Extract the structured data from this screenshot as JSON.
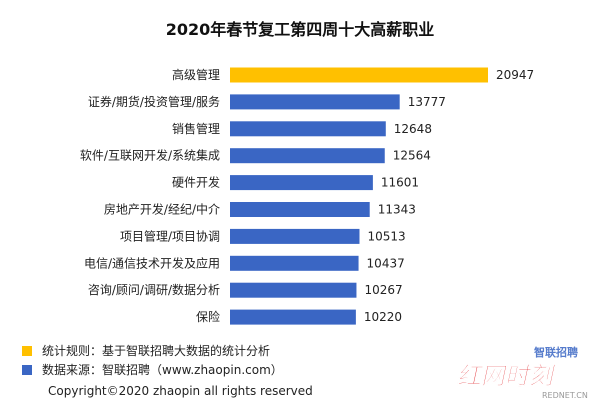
{
  "title": "2020年春节复工第四周十大高薪职业",
  "colors": {
    "highlight": "#FFC000",
    "bar": "#3A66C4",
    "text": "#222222",
    "logo_red": "#E0262B"
  },
  "chart_data": {
    "type": "bar",
    "orientation": "horizontal",
    "categories": [
      "高级管理",
      "证券/期货/投资管理/服务",
      "销售管理",
      "软件/互联网开发/系统集成",
      "硬件开发",
      "房地产开发/经纪/中介",
      "项目管理/项目协调",
      "电信/通信技术开发及应用",
      "咨询/顾问/调研/数据分析",
      "保险"
    ],
    "values": [
      20947,
      13777,
      12648,
      12564,
      11601,
      11343,
      10513,
      10437,
      10267,
      10220
    ],
    "value_labels": [
      "20947",
      "13777",
      "12648",
      "12564",
      "11601",
      "11343",
      "10513",
      "10437",
      "10267",
      "10220"
    ],
    "highlight_index": 0,
    "xlim": [
      0,
      21500
    ],
    "grid": false,
    "legend": "bottom-left"
  },
  "legend": {
    "rule_text": "统计规则：基于智联招聘大数据的统计分析",
    "source_text": "数据来源：智联招聘（www.zhaopin.com）"
  },
  "footer": {
    "copyright": "Copyright©2020 zhaopin all rights reserved"
  },
  "logo": {
    "text": "红网时刻",
    "subtext": "REDNET.CN",
    "partner_text": "智联招聘"
  }
}
